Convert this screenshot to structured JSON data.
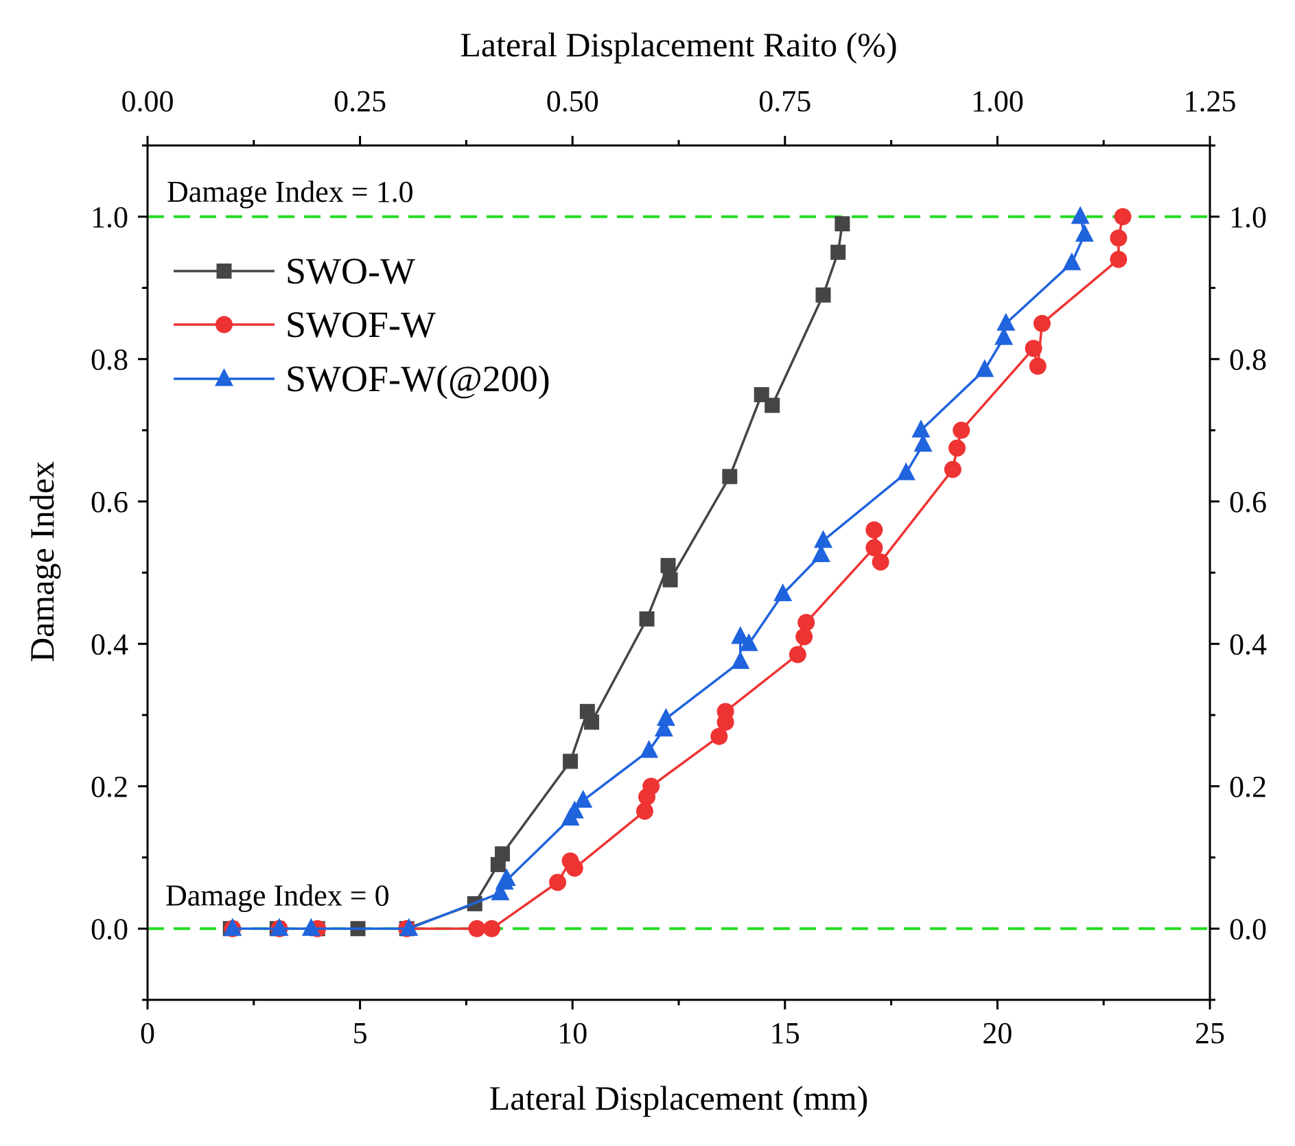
{
  "chart_data": {
    "type": "line",
    "title": "",
    "xlabel": "Lateral Displacement (mm)",
    "ylabel": "Damage Index",
    "x2label": "Lateral Displacement Raito (%)",
    "xlim": [
      0,
      25
    ],
    "ylim": [
      -0.1,
      1.1
    ],
    "x2lim": [
      0,
      1.25
    ],
    "x_ticks": [
      0,
      5,
      10,
      15,
      20,
      25
    ],
    "x_tick_labels": [
      "0",
      "5",
      "10",
      "15",
      "20",
      "25"
    ],
    "x2_tick_labels": [
      "0.00",
      "0.25",
      "0.50",
      "0.75",
      "1.00",
      "1.25"
    ],
    "y_ticks": [
      0.0,
      0.2,
      0.4,
      0.6,
      0.8,
      1.0
    ],
    "y_tick_labels": [
      "0.0",
      "0.2",
      "0.4",
      "0.6",
      "0.8",
      "1.0"
    ],
    "grid": false,
    "legend_position": "top-left",
    "reference_lines": [
      {
        "y": 1.0,
        "label": "Damage Index = 1.0",
        "color": "#22dd22"
      },
      {
        "y": 0.0,
        "label": "Damage Index = 0",
        "color": "#22dd22"
      }
    ],
    "series": [
      {
        "name": "SWO-W",
        "color": "#454545",
        "marker": "square",
        "x": [
          1.95,
          3.05,
          4.0,
          4.95,
          6.1,
          7.7,
          8.25,
          8.35,
          9.95,
          10.35,
          10.45,
          11.75,
          12.25,
          12.3,
          13.7,
          14.45,
          14.7,
          15.9,
          16.25,
          16.35
        ],
        "y": [
          0.0,
          0.0,
          0.0,
          0.0,
          0.0,
          0.035,
          0.09,
          0.105,
          0.235,
          0.305,
          0.29,
          0.435,
          0.51,
          0.49,
          0.635,
          0.75,
          0.735,
          0.89,
          0.95,
          0.99
        ]
      },
      {
        "name": "SWOF-W",
        "color": "#ee3333",
        "marker": "circle",
        "x": [
          2.0,
          3.1,
          4.0,
          6.1,
          7.75,
          8.1,
          9.65,
          9.95,
          10.05,
          11.7,
          11.75,
          11.85,
          13.45,
          13.6,
          13.6,
          15.3,
          15.45,
          15.5,
          17.1,
          17.1,
          17.25,
          18.95,
          19.05,
          19.15,
          20.85,
          20.95,
          21.05,
          22.85,
          22.85,
          22.95
        ],
        "y": [
          0.0,
          0.0,
          0.0,
          0.0,
          0.0,
          0.0,
          0.065,
          0.095,
          0.085,
          0.165,
          0.185,
          0.2,
          0.27,
          0.29,
          0.305,
          0.385,
          0.41,
          0.43,
          0.535,
          0.56,
          0.515,
          0.645,
          0.675,
          0.7,
          0.815,
          0.79,
          0.85,
          0.94,
          0.97,
          1.0
        ]
      },
      {
        "name": "SWOF-W(@200)",
        "color": "#1f63dd",
        "marker": "triangle",
        "x": [
          2.0,
          3.1,
          3.85,
          6.15,
          8.3,
          8.45,
          8.4,
          9.95,
          10.05,
          10.25,
          11.8,
          12.15,
          12.2,
          13.95,
          13.95,
          14.15,
          14.95,
          15.85,
          15.9,
          17.85,
          18.25,
          18.2,
          19.7,
          20.15,
          20.2,
          21.75,
          22.05,
          21.95
        ],
        "y": [
          0.0,
          0.0,
          0.0,
          0.0,
          0.05,
          0.07,
          0.065,
          0.155,
          0.165,
          0.18,
          0.25,
          0.28,
          0.295,
          0.375,
          0.41,
          0.4,
          0.47,
          0.525,
          0.545,
          0.64,
          0.68,
          0.7,
          0.785,
          0.83,
          0.85,
          0.935,
          0.975,
          1.0
        ]
      }
    ]
  }
}
